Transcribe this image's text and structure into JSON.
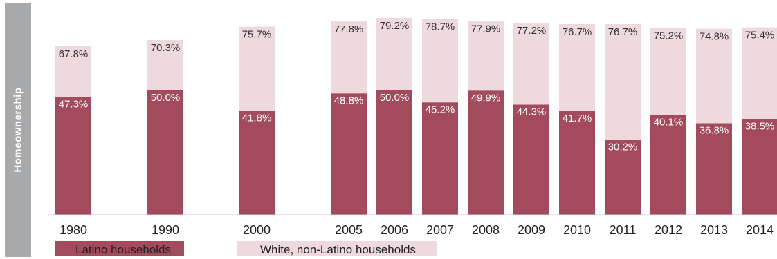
{
  "side_label": "Homeownership",
  "colors": {
    "latino": "#a34b5c",
    "white": "#eed9de",
    "side": "#a8a9ab",
    "latino_text": "#ffffff",
    "white_text": "#333333"
  },
  "chart_data": {
    "type": "bar",
    "stacking": "overlay",
    "categories": [
      "1980",
      "1990",
      "2000",
      "2005",
      "2006",
      "2007",
      "2008",
      "2009",
      "2010",
      "2011",
      "2012",
      "2013",
      "2014"
    ],
    "series": [
      {
        "name": "Latino households",
        "values": [
          47.3,
          50.0,
          41.8,
          48.8,
          50.0,
          45.2,
          49.9,
          44.3,
          41.7,
          30.2,
          40.1,
          36.8,
          38.5
        ]
      },
      {
        "name": "White, non-Latino households",
        "values": [
          67.8,
          70.3,
          75.7,
          77.8,
          79.2,
          78.7,
          77.9,
          77.2,
          76.7,
          76.7,
          75.2,
          74.8,
          75.4
        ]
      }
    ],
    "value_labels": {
      "latino": [
        "47.3%",
        "50.0%",
        "41.8%",
        "48.8%",
        "50.0%",
        "45.2%",
        "49.9%",
        "44.3%",
        "41.7%",
        "30.2%",
        "40.1%",
        "36.8%",
        "38.5%"
      ],
      "white": [
        "67.8%",
        "70.3%",
        "75.7%",
        "77.8%",
        "79.2%",
        "78.7%",
        "77.9%",
        "77.2%",
        "76.7%",
        "76.7%",
        "75.2%",
        "74.8%",
        "75.4%"
      ]
    },
    "ylim": [
      0,
      100
    ],
    "grid": false,
    "legend_position": "bottom-left"
  }
}
